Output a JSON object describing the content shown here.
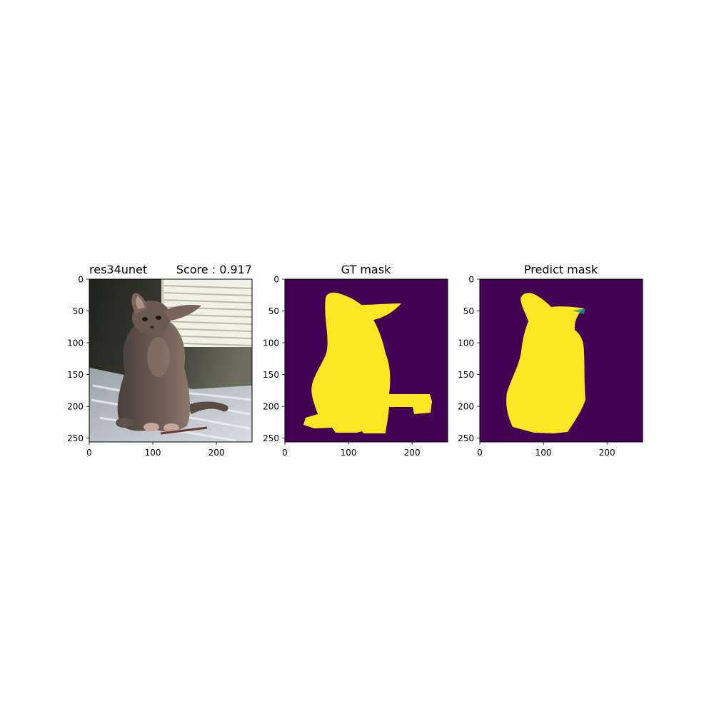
{
  "panels": [
    {
      "title_left": "res34unet",
      "title_right": "Score : 0.917",
      "content": "photo"
    },
    {
      "title": "GT mask",
      "content": "gt-mask"
    },
    {
      "title": "Predict mask",
      "content": "pred-mask"
    }
  ],
  "colors": {
    "mask_background": "#440154",
    "mask_foreground": "#fde725",
    "mask_edge": "#21918c"
  },
  "chart_data": [
    {
      "type": "heatmap",
      "title": "res34unet    Score : 0.917",
      "description": "input image, 256x256",
      "xlim": [
        0,
        256
      ],
      "ylim": [
        256,
        0
      ],
      "xticks": [
        0,
        100,
        200
      ],
      "yticks": [
        0,
        50,
        100,
        150,
        200,
        250
      ]
    },
    {
      "type": "heatmap",
      "title": "GT mask",
      "xlim": [
        0,
        256
      ],
      "ylim": [
        256,
        0
      ],
      "xticks": [
        0,
        100,
        200
      ],
      "yticks": [
        0,
        50,
        100,
        150,
        200,
        250
      ],
      "colormap": "viridis",
      "classes": [
        0,
        1
      ]
    },
    {
      "type": "heatmap",
      "title": "Predict mask",
      "xlim": [
        0,
        256
      ],
      "ylim": [
        256,
        0
      ],
      "xticks": [
        0,
        100,
        200
      ],
      "yticks": [
        0,
        50,
        100,
        150,
        200,
        250
      ],
      "colormap": "viridis",
      "classes": [
        0,
        1
      ],
      "score": 0.917
    }
  ]
}
